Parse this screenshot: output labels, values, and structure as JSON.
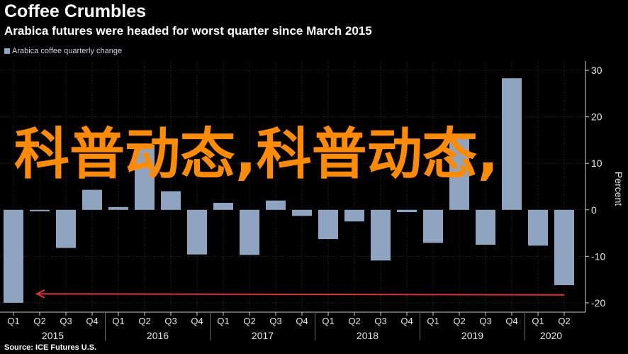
{
  "header": {
    "title": "Coffee Crumbles",
    "subtitle": "Arabica futures were headed for worst quarter since March 2015"
  },
  "footer": {
    "source": "Source: ICE Futures U.S."
  },
  "watermark": {
    "text": "科普动态,科普动态,"
  },
  "colors": {
    "bar": "#8fa4c0",
    "background": "#000000",
    "grid": "#2b2b2b",
    "annotation_arrow": "#e0323c"
  },
  "chart_data": {
    "type": "bar",
    "title": "Coffee Crumbles",
    "subtitle": "Arabica futures were headed for worst quarter since March 2015",
    "ylabel": "Percent",
    "ylim": [
      -22,
      32
    ],
    "yticks": [
      -20,
      -10,
      0,
      10,
      20,
      30
    ],
    "grid": true,
    "legend_position": "top-left",
    "series": [
      {
        "name": "Arabica coffee quarterly change",
        "values": [
          -20,
          -0.3,
          -8.2,
          4.3,
          0.6,
          14,
          4,
          -9.6,
          1.5,
          -9.7,
          2,
          -1.3,
          -6.3,
          -2.5,
          -10.9,
          -0.5,
          -7.1,
          15.8,
          -7.5,
          28.3,
          -7.7,
          -16.2
        ]
      }
    ],
    "categories": [
      "Q1",
      "Q2",
      "Q3",
      "Q4",
      "Q1",
      "Q2",
      "Q3",
      "Q4",
      "Q1",
      "Q2",
      "Q3",
      "Q4",
      "Q1",
      "Q2",
      "Q3",
      "Q4",
      "Q1",
      "Q2",
      "Q3",
      "Q4",
      "Q1",
      "Q2"
    ],
    "year_labels": [
      "2015",
      "2016",
      "2017",
      "2018",
      "2019",
      "2020"
    ],
    "annotation": {
      "type": "arrow",
      "y": -18.3,
      "direction": "left"
    }
  }
}
